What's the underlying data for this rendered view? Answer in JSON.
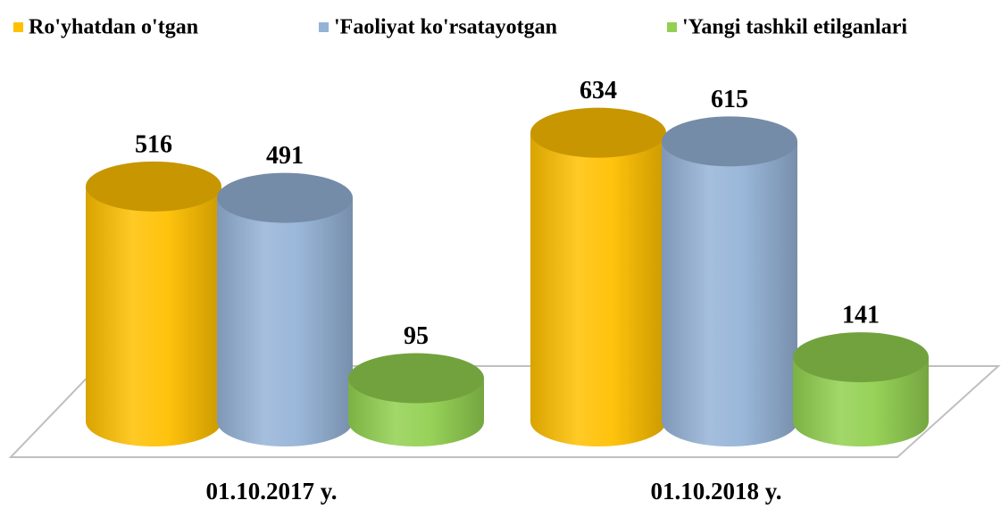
{
  "chart_data": {
    "type": "cylinder",
    "categories": [
      "01.10.2017 y.",
      "01.10.2018 y."
    ],
    "series": [
      {
        "name": "Ro'yhatdan o'tgan",
        "color": "#ffc000",
        "values": [
          516,
          634
        ]
      },
      {
        "name": "'Faoliyat ko'rsatayotgan",
        "color": "#95b3d7",
        "values": [
          491,
          615
        ]
      },
      {
        "name": "'Yangi tashkil etilganlari",
        "color": "#92d050",
        "values": [
          95,
          141
        ]
      }
    ],
    "legend": "top"
  }
}
